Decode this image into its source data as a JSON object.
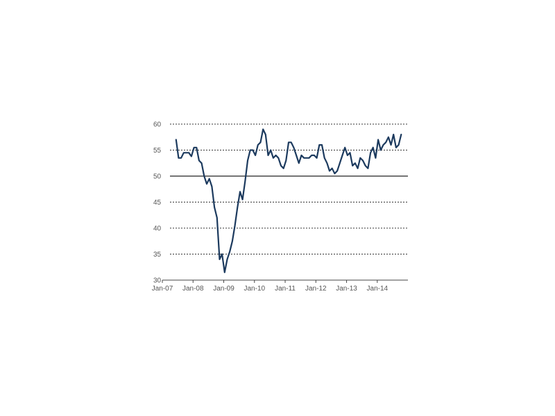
{
  "chart_data": {
    "type": "line",
    "title": "",
    "xlabel": "",
    "ylabel": "",
    "ylim": [
      30,
      60
    ],
    "yticks": [
      30,
      35,
      40,
      45,
      50,
      55,
      60
    ],
    "xlim": [
      "2007-01",
      "2014-10"
    ],
    "xticks": [
      {
        "date": "2007-01",
        "label": "Jan-07"
      },
      {
        "date": "2008-01",
        "label": "Jan-08"
      },
      {
        "date": "2009-01",
        "label": "Jan-09"
      },
      {
        "date": "2010-01",
        "label": "Jan-10"
      },
      {
        "date": "2011-01",
        "label": "Jan-11"
      },
      {
        "date": "2012-01",
        "label": "Jan-12"
      },
      {
        "date": "2013-01",
        "label": "Jan-13"
      },
      {
        "date": "2014-01",
        "label": "Jan-14"
      }
    ],
    "grid": "horizontal dashed",
    "reference_line": 50,
    "series_color": "#1c3a5e",
    "series": [
      {
        "x": [
          "2007-05",
          "2007-06",
          "2007-07",
          "2007-08",
          "2007-09",
          "2007-10",
          "2007-11",
          "2007-12",
          "2008-01",
          "2008-02",
          "2008-03",
          "2008-04",
          "2008-05",
          "2008-06",
          "2008-07",
          "2008-08",
          "2008-09",
          "2008-10",
          "2008-11",
          "2008-12",
          "2009-01",
          "2009-02",
          "2009-03",
          "2009-04",
          "2009-05",
          "2009-06",
          "2009-07",
          "2009-08",
          "2009-09",
          "2009-10",
          "2009-11",
          "2009-12",
          "2010-01",
          "2010-02",
          "2010-03",
          "2010-04",
          "2010-05",
          "2010-06",
          "2010-07",
          "2010-08",
          "2010-09",
          "2010-10",
          "2010-11",
          "2010-12",
          "2011-01",
          "2011-02",
          "2011-03",
          "2011-04",
          "2011-05",
          "2011-06",
          "2011-07",
          "2011-08",
          "2011-09",
          "2011-10",
          "2011-11",
          "2011-12",
          "2012-01",
          "2012-02",
          "2012-03",
          "2012-04",
          "2012-05",
          "2012-06",
          "2012-07",
          "2012-08",
          "2012-09",
          "2012-10",
          "2012-11",
          "2012-12",
          "2013-01",
          "2013-02",
          "2013-03",
          "2013-04",
          "2013-05",
          "2013-06",
          "2013-07",
          "2013-08",
          "2013-09",
          "2013-10",
          "2013-11",
          "2013-12",
          "2014-01",
          "2014-02",
          "2014-03",
          "2014-04",
          "2014-05",
          "2014-06",
          "2014-07",
          "2014-08",
          "2014-09"
        ],
        "values": [
          57.0,
          53.5,
          53.5,
          54.5,
          54.5,
          54.5,
          53.8,
          55.5,
          55.5,
          53.0,
          52.5,
          50.0,
          48.5,
          49.5,
          48.0,
          44.0,
          42.0,
          34.0,
          35.0,
          31.5,
          34.0,
          35.5,
          37.5,
          40.5,
          44.0,
          47.0,
          45.5,
          49.0,
          53.0,
          55.0,
          55.0,
          54.0,
          56.0,
          56.5,
          59.0,
          58.0,
          54.0,
          55.0,
          53.5,
          54.0,
          53.5,
          52.0,
          51.5,
          53.0,
          56.5,
          56.5,
          55.5,
          54.0,
          52.5,
          54.0,
          53.5,
          53.5,
          53.5,
          54.0,
          54.0,
          53.5,
          56.0,
          56.0,
          53.5,
          52.5,
          51.0,
          51.5,
          50.5,
          51.0,
          52.5,
          54.0,
          55.5,
          54.0,
          54.5,
          52.0,
          52.5,
          51.5,
          53.5,
          53.0,
          52.0,
          51.5,
          54.5,
          55.5,
          53.5,
          57.0,
          55.0,
          56.0,
          56.5,
          57.5,
          56.0,
          58.0,
          55.5,
          56.0,
          58.0
        ]
      }
    ]
  }
}
